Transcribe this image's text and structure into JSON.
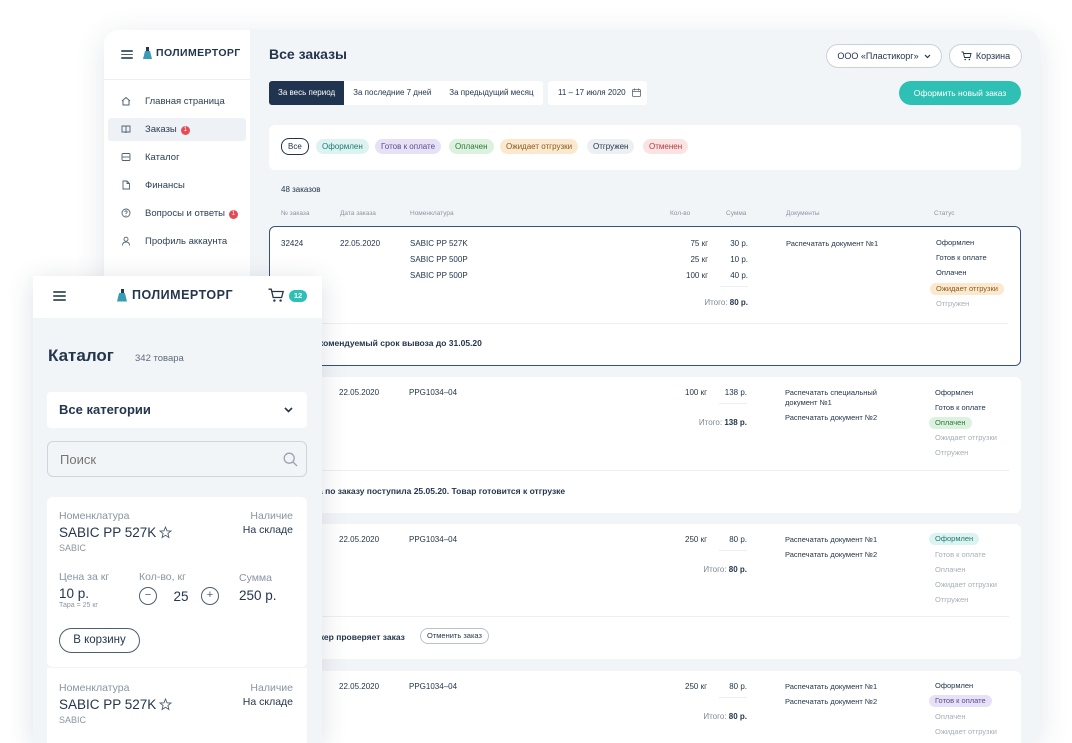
{
  "brand": {
    "name": "ПОЛИМЕРТОРГ"
  },
  "sidebar": {
    "items": [
      {
        "label": "Главная страница",
        "icon": "home-icon"
      },
      {
        "label": "Заказы",
        "icon": "book-icon",
        "badge": "1",
        "active": true
      },
      {
        "label": "Каталог",
        "icon": "catalog-icon"
      },
      {
        "label": "Финансы",
        "icon": "document-icon"
      },
      {
        "label": "Вопросы и ответы",
        "icon": "question-icon",
        "badge": "1"
      },
      {
        "label": "Профиль аккаунта",
        "icon": "user-icon"
      }
    ]
  },
  "header": {
    "title": "Все заказы",
    "company": "ООО «Пластикорг»",
    "cart_label": "Корзина"
  },
  "toolbar": {
    "periods": [
      "За весь период",
      "За последние 7 дней",
      "За предыдущий месяц"
    ],
    "date_range": "11 – 17 июля 2020",
    "new_order_label": "Оформить новый заказ"
  },
  "filters": [
    "Все",
    "Оформлен",
    "Готов к оплате",
    "Оплачен",
    "Ожидает отгрузки",
    "Отгружен",
    "Отменен"
  ],
  "colors": {
    "accent": "#2ec0b4",
    "navy": "#20344f",
    "danger": "#e64b55"
  },
  "orders_count": "48 заказов",
  "columns": [
    "№ заказа",
    "Дата заказа",
    "Номенклатура",
    "Кол-во",
    "Сумма",
    "Документы",
    "Статус"
  ],
  "total_label": "Итого:",
  "orders": [
    {
      "number": "32424",
      "date": "22.05.2020",
      "items": [
        {
          "name": "SABIC PP 527K",
          "qty": "75 кг",
          "sum": "30 р."
        },
        {
          "name": "SABIC PP 500P",
          "qty": "25 кг",
          "sum": "10 р."
        },
        {
          "name": "SABIC PP 500P",
          "qty": "100 кг",
          "sum": "40 р."
        }
      ],
      "total": "80 р.",
      "docs": [
        "Распечатать документ №1"
      ],
      "statuses": [
        "Оформлен",
        "Готов к оплате",
        "Оплачен",
        "Ожидает отгрузки",
        "Отгружен"
      ],
      "note": "комендуемый срок вывоза до 31.05.20"
    },
    {
      "date": "22.05.2020",
      "items": [
        {
          "name": "PPG1034–04",
          "qty": "100 кг",
          "sum": "138 р."
        }
      ],
      "total": "138 р.",
      "docs": [
        "Распечатать специальный документ №1",
        "Распечатать документ №2"
      ],
      "statuses": [
        "Оформлен",
        "Готов к оплате",
        "Оплачен",
        "Ожидает отгрузки",
        "Отгружен"
      ],
      "note": "а по заказу поступила 25.05.20. Товар готовится к отгрузке"
    },
    {
      "date": "22.05.2020",
      "items": [
        {
          "name": "PPG1034–04",
          "qty": "250 кг",
          "sum": "80 р."
        }
      ],
      "total": "80 р.",
      "docs": [
        "Распечатать документ №1",
        "Распечатать документ №2"
      ],
      "statuses": [
        "Оформлен",
        "Готов к оплате",
        "Оплачен",
        "Ожидает отгрузки",
        "Отгружен"
      ],
      "note": "жер проверяет заказ",
      "cancel_label": "Отменить заказ"
    },
    {
      "date": "22.05.2020",
      "items": [
        {
          "name": "PPG1034–04",
          "qty": "250 кг",
          "sum": "80 р."
        }
      ],
      "total": "80 р.",
      "docs": [
        "Распечатать документ №1",
        "Распечатать документ №2"
      ],
      "statuses": [
        "Оформлен",
        "Готов к оплате",
        "Оплачен",
        "Ожидает отгрузки"
      ]
    }
  ],
  "mobile": {
    "cart_count": "12",
    "title": "Каталог",
    "count": "342 товара",
    "category": "Все категории",
    "search_placeholder": "Поиск",
    "card_labels": {
      "nomenclature": "Номенклатура",
      "availability": "Наличие",
      "price": "Цена за кг",
      "qty": "Кол-во, кг",
      "sum": "Сумма",
      "add": "В корзину"
    },
    "products": [
      {
        "name": "SABIC PP 527K",
        "brand": "SABIC",
        "availability": "На складе",
        "price": "10 р.",
        "tare": "Тара = 25 кг",
        "qty": "25",
        "sum": "250 р."
      },
      {
        "name": "SABIC PP 527K",
        "brand": "SABIC",
        "availability": "На складе"
      }
    ]
  }
}
